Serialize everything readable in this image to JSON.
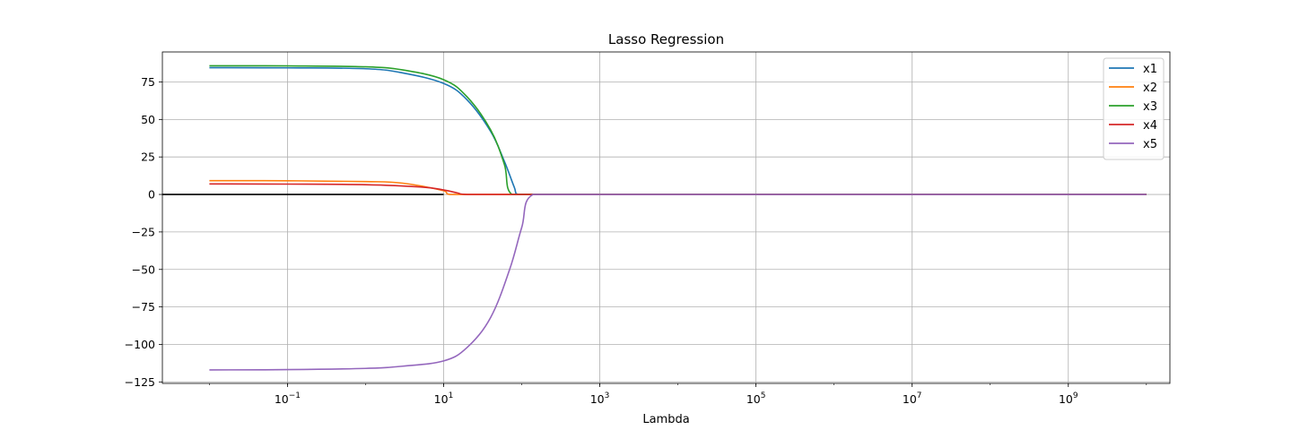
{
  "chart_data": {
    "type": "line",
    "title": "Lasso Regression",
    "xlabel": "Lambda",
    "ylabel": "",
    "xscale": "log",
    "xlim": [
      0.0025,
      20000000000
    ],
    "ylim": [
      -126,
      95
    ],
    "grid": true,
    "legend_position": "top-right",
    "zero_line": 0,
    "x_ticks": [
      {
        "value": 0.1,
        "base": "10",
        "exp": "−1"
      },
      {
        "value": 10,
        "base": "10",
        "exp": "1"
      },
      {
        "value": 1000,
        "base": "10",
        "exp": "3"
      },
      {
        "value": 100000,
        "base": "10",
        "exp": "5"
      },
      {
        "value": 10000000,
        "base": "10",
        "exp": "7"
      },
      {
        "value": 1000000000,
        "base": "10",
        "exp": "9"
      }
    ],
    "y_ticks": [
      {
        "value": 75,
        "label": "75"
      },
      {
        "value": 50,
        "label": "50"
      },
      {
        "value": 25,
        "label": "25"
      },
      {
        "value": 0,
        "label": "0"
      },
      {
        "value": -25,
        "label": "−25"
      },
      {
        "value": -50,
        "label": "−50"
      },
      {
        "value": -75,
        "label": "−75"
      },
      {
        "value": -100,
        "label": "−100"
      },
      {
        "value": -125,
        "label": "−125"
      }
    ],
    "series": [
      {
        "name": "x1",
        "color": "#1f77b4",
        "points": [
          [
            0.01,
            84.5
          ],
          [
            0.1,
            84.4
          ],
          [
            1,
            83.8
          ],
          [
            3,
            81
          ],
          [
            10,
            74
          ],
          [
            20,
            63
          ],
          [
            40,
            42
          ],
          [
            60,
            22
          ],
          [
            80,
            5
          ],
          [
            90,
            0
          ],
          [
            1000,
            0
          ],
          [
            10000000000,
            0
          ]
        ]
      },
      {
        "name": "x2",
        "color": "#ff7f0e",
        "points": [
          [
            0.01,
            9.2
          ],
          [
            0.1,
            9.1
          ],
          [
            1,
            8.6
          ],
          [
            3,
            7.5
          ],
          [
            10,
            2.5
          ],
          [
            12,
            0
          ],
          [
            1000,
            0
          ],
          [
            10000000000,
            0
          ]
        ]
      },
      {
        "name": "x3",
        "color": "#2ca02c",
        "points": [
          [
            0.01,
            85.8
          ],
          [
            0.1,
            85.7
          ],
          [
            1,
            85.1
          ],
          [
            3,
            83
          ],
          [
            10,
            76.5
          ],
          [
            20,
            65
          ],
          [
            40,
            43
          ],
          [
            60,
            20
          ],
          [
            75,
            0
          ],
          [
            1000,
            0
          ],
          [
            10000000000,
            0
          ]
        ]
      },
      {
        "name": "x4",
        "color": "#d62728",
        "points": [
          [
            0.01,
            7
          ],
          [
            0.1,
            6.9
          ],
          [
            1,
            6.5
          ],
          [
            5,
            5
          ],
          [
            10,
            3
          ],
          [
            15,
            1
          ],
          [
            20,
            0
          ],
          [
            1000,
            0
          ],
          [
            10000000000,
            0
          ]
        ]
      },
      {
        "name": "x5",
        "color": "#9467bd",
        "points": [
          [
            0.01,
            -117
          ],
          [
            0.1,
            -116.8
          ],
          [
            1,
            -116
          ],
          [
            3,
            -114.5
          ],
          [
            10,
            -111
          ],
          [
            20,
            -102
          ],
          [
            40,
            -82
          ],
          [
            70,
            -50
          ],
          [
            100,
            -22
          ],
          [
            140,
            0
          ],
          [
            1000,
            0
          ],
          [
            10000000000,
            0
          ]
        ]
      }
    ]
  }
}
